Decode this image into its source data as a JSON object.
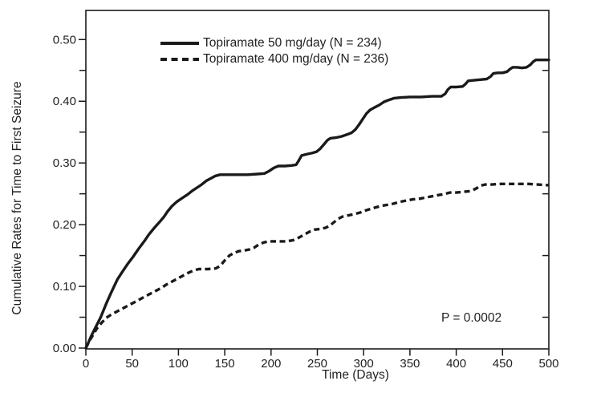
{
  "chart_data": {
    "type": "line",
    "title": "",
    "xlabel": "Time (Days)",
    "ylabel": "Cumulative Rates for Time to First Seizure",
    "xlim": [
      0,
      500
    ],
    "ylim": [
      0,
      0.547
    ],
    "grid": false,
    "frame": true,
    "legend_position": "top-center-inside",
    "line_color": "#1a1a1a",
    "text_color": "#231f20",
    "background_color": "#ffffff",
    "x_tick_values": [
      0,
      50,
      100,
      150,
      200,
      250,
      300,
      350,
      400,
      450,
      500
    ],
    "x_tick_labels": [
      "0",
      "50",
      "100",
      "150",
      "200",
      "250",
      "300",
      "350",
      "400",
      "450",
      "500"
    ],
    "y_tick_values": [
      0.0,
      0.1,
      0.2,
      0.3,
      0.4,
      0.5
    ],
    "y_tick_labels": [
      "0.00",
      "0.10",
      "0.20",
      "0.30",
      "0.40",
      "0.50"
    ],
    "y_minor_tick_values": [
      0.05,
      0.15,
      0.25,
      0.35,
      0.45
    ],
    "right_axis_tick_values": [
      0.05,
      0.15,
      0.25,
      0.35,
      0.45
    ],
    "annotations": [
      {
        "text": "P = 0.0002"
      }
    ],
    "series": [
      {
        "name": "Topiramate 50 mg/day (N = 234)",
        "line_style": "solid",
        "color": "#1a1a1a",
        "points": [
          [
            0,
            0
          ],
          [
            3,
            0.01
          ],
          [
            6,
            0.02
          ],
          [
            10,
            0.032
          ],
          [
            16,
            0.05
          ],
          [
            22,
            0.072
          ],
          [
            28,
            0.092
          ],
          [
            34,
            0.111
          ],
          [
            40,
            0.125
          ],
          [
            45,
            0.136
          ],
          [
            51,
            0.148
          ],
          [
            57,
            0.161
          ],
          [
            63,
            0.173
          ],
          [
            68,
            0.184
          ],
          [
            74,
            0.195
          ],
          [
            80,
            0.205
          ],
          [
            84,
            0.212
          ],
          [
            88,
            0.221
          ],
          [
            93,
            0.23
          ],
          [
            98,
            0.237
          ],
          [
            104,
            0.243
          ],
          [
            110,
            0.249
          ],
          [
            115,
            0.255
          ],
          [
            120,
            0.26
          ],
          [
            125,
            0.265
          ],
          [
            130,
            0.271
          ],
          [
            135,
            0.275
          ],
          [
            140,
            0.279
          ],
          [
            145,
            0.281
          ],
          [
            155,
            0.281
          ],
          [
            165,
            0.281
          ],
          [
            175,
            0.281
          ],
          [
            185,
            0.282
          ],
          [
            193,
            0.283
          ],
          [
            198,
            0.287
          ],
          [
            203,
            0.292
          ],
          [
            208,
            0.295
          ],
          [
            215,
            0.295
          ],
          [
            222,
            0.296
          ],
          [
            227,
            0.297
          ],
          [
            230,
            0.304
          ],
          [
            233,
            0.312
          ],
          [
            238,
            0.314
          ],
          [
            244,
            0.316
          ],
          [
            249,
            0.318
          ],
          [
            253,
            0.323
          ],
          [
            257,
            0.33
          ],
          [
            261,
            0.337
          ],
          [
            264,
            0.34
          ],
          [
            270,
            0.341
          ],
          [
            276,
            0.343
          ],
          [
            282,
            0.346
          ],
          [
            287,
            0.349
          ],
          [
            291,
            0.354
          ],
          [
            295,
            0.362
          ],
          [
            299,
            0.371
          ],
          [
            303,
            0.38
          ],
          [
            307,
            0.386
          ],
          [
            312,
            0.39
          ],
          [
            317,
            0.394
          ],
          [
            322,
            0.399
          ],
          [
            327,
            0.402
          ],
          [
            333,
            0.405
          ],
          [
            340,
            0.406
          ],
          [
            350,
            0.407
          ],
          [
            362,
            0.407
          ],
          [
            374,
            0.408
          ],
          [
            384,
            0.408
          ],
          [
            388,
            0.412
          ],
          [
            391,
            0.419
          ],
          [
            394,
            0.423
          ],
          [
            400,
            0.423
          ],
          [
            407,
            0.424
          ],
          [
            410,
            0.428
          ],
          [
            413,
            0.433
          ],
          [
            419,
            0.434
          ],
          [
            426,
            0.435
          ],
          [
            433,
            0.436
          ],
          [
            437,
            0.44
          ],
          [
            440,
            0.445
          ],
          [
            445,
            0.446
          ],
          [
            450,
            0.446
          ],
          [
            455,
            0.448
          ],
          [
            458,
            0.452
          ],
          [
            461,
            0.455
          ],
          [
            466,
            0.455
          ],
          [
            471,
            0.454
          ],
          [
            476,
            0.455
          ],
          [
            480,
            0.459
          ],
          [
            483,
            0.464
          ],
          [
            486,
            0.467
          ],
          [
            492,
            0.467
          ],
          [
            500,
            0.467
          ]
        ]
      },
      {
        "name": "Topiramate 400 mg/day (N = 236)",
        "line_style": "dashed",
        "color": "#1a1a1a",
        "points": [
          [
            0,
            0
          ],
          [
            4,
            0.012
          ],
          [
            8,
            0.022
          ],
          [
            12,
            0.032
          ],
          [
            17,
            0.041
          ],
          [
            22,
            0.049
          ],
          [
            27,
            0.054
          ],
          [
            32,
            0.058
          ],
          [
            37,
            0.062
          ],
          [
            42,
            0.066
          ],
          [
            47,
            0.07
          ],
          [
            52,
            0.074
          ],
          [
            57,
            0.078
          ],
          [
            62,
            0.082
          ],
          [
            67,
            0.086
          ],
          [
            72,
            0.09
          ],
          [
            77,
            0.094
          ],
          [
            82,
            0.098
          ],
          [
            87,
            0.103
          ],
          [
            92,
            0.107
          ],
          [
            97,
            0.111
          ],
          [
            102,
            0.115
          ],
          [
            107,
            0.119
          ],
          [
            112,
            0.123
          ],
          [
            117,
            0.126
          ],
          [
            122,
            0.128
          ],
          [
            132,
            0.128
          ],
          [
            140,
            0.129
          ],
          [
            145,
            0.133
          ],
          [
            150,
            0.142
          ],
          [
            155,
            0.15
          ],
          [
            160,
            0.154
          ],
          [
            165,
            0.157
          ],
          [
            171,
            0.158
          ],
          [
            177,
            0.16
          ],
          [
            182,
            0.163
          ],
          [
            187,
            0.168
          ],
          [
            192,
            0.171
          ],
          [
            197,
            0.173
          ],
          [
            207,
            0.173
          ],
          [
            217,
            0.173
          ],
          [
            224,
            0.175
          ],
          [
            230,
            0.179
          ],
          [
            236,
            0.184
          ],
          [
            242,
            0.189
          ],
          [
            247,
            0.192
          ],
          [
            253,
            0.193
          ],
          [
            259,
            0.195
          ],
          [
            264,
            0.199
          ],
          [
            268,
            0.204
          ],
          [
            272,
            0.209
          ],
          [
            277,
            0.213
          ],
          [
            283,
            0.215
          ],
          [
            290,
            0.217
          ],
          [
            297,
            0.22
          ],
          [
            304,
            0.224
          ],
          [
            311,
            0.227
          ],
          [
            318,
            0.23
          ],
          [
            325,
            0.232
          ],
          [
            332,
            0.234
          ],
          [
            339,
            0.237
          ],
          [
            346,
            0.239
          ],
          [
            353,
            0.241
          ],
          [
            360,
            0.242
          ],
          [
            367,
            0.244
          ],
          [
            374,
            0.246
          ],
          [
            381,
            0.248
          ],
          [
            388,
            0.25
          ],
          [
            393,
            0.252
          ],
          [
            400,
            0.252
          ],
          [
            407,
            0.253
          ],
          [
            413,
            0.254
          ],
          [
            418,
            0.256
          ],
          [
            422,
            0.259
          ],
          [
            426,
            0.263
          ],
          [
            431,
            0.265
          ],
          [
            438,
            0.265
          ],
          [
            448,
            0.266
          ],
          [
            458,
            0.266
          ],
          [
            468,
            0.266
          ],
          [
            478,
            0.266
          ],
          [
            488,
            0.265
          ],
          [
            500,
            0.264
          ]
        ]
      }
    ]
  }
}
